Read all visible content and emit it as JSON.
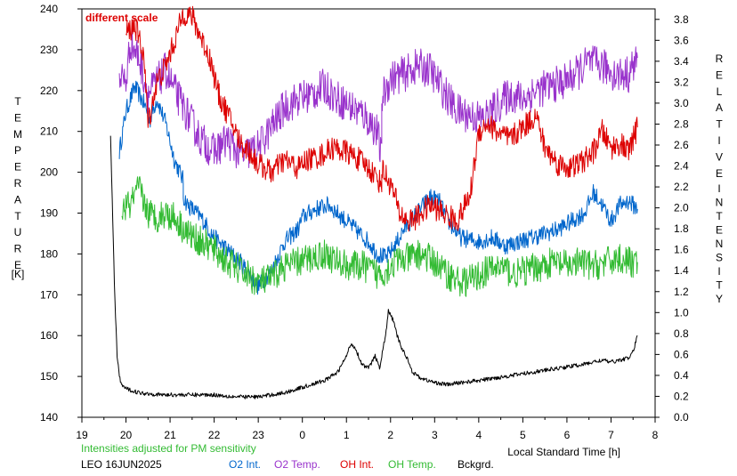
{
  "chart_data": {
    "type": "line",
    "annotation": "different scale",
    "left_axis": {
      "label_letters": [
        "T",
        "E",
        "M",
        "P",
        "E",
        "R",
        "A",
        "T",
        "U",
        "R",
        "E"
      ],
      "unit": "[K]",
      "range": [
        140,
        240
      ],
      "ticks": [
        140,
        150,
        160,
        170,
        180,
        190,
        200,
        210,
        220,
        230,
        240
      ]
    },
    "right_axis": {
      "label_word1": [
        "R",
        "E",
        "L",
        "A",
        "T",
        "I",
        "V",
        "E"
      ],
      "label_word2": [
        "I",
        "N",
        "T",
        "E",
        "N",
        "S",
        "I",
        "T",
        "Y"
      ],
      "range": [
        0.0,
        3.9
      ],
      "ticks": [
        "0.0",
        "0.2",
        "0.4",
        "0.6",
        "0.8",
        "1.0",
        "1.2",
        "1.4",
        "1.6",
        "1.8",
        "2.0",
        "2.2",
        "2.4",
        "2.6",
        "2.8",
        "3.0",
        "3.2",
        "3.4",
        "3.6",
        "3.8"
      ]
    },
    "x_axis": {
      "label": "Local Standard Time [h]",
      "ticks": [
        "19",
        "20",
        "21",
        "22",
        "23",
        "0",
        "1",
        "2",
        "3",
        "4",
        "5",
        "6",
        "7",
        "8"
      ]
    },
    "footer": {
      "note": "Intensities adjusted for PM sensitivity",
      "station": "LEO 16JUN2025"
    },
    "legend": [
      {
        "name": "O2 Int.",
        "color": "#0066cc"
      },
      {
        "name": "O2 Temp.",
        "color": "#9933cc"
      },
      {
        "name": "OH Int.",
        "color": "#dd0000"
      },
      {
        "name": "OH Temp.",
        "color": "#33bb33"
      },
      {
        "name": "Bckgrd.",
        "color": "#000000"
      }
    ],
    "series": [
      {
        "name": "O2 Int.",
        "color": "#0066cc",
        "noise": 2.2,
        "points": [
          [
            19.85,
            205
          ],
          [
            20.0,
            215
          ],
          [
            20.2,
            221
          ],
          [
            20.4,
            217
          ],
          [
            20.55,
            213
          ],
          [
            20.7,
            218
          ],
          [
            20.9,
            212
          ],
          [
            21.1,
            203
          ],
          [
            21.3,
            198
          ],
          [
            21.3,
            194
          ],
          [
            21.4,
            192
          ],
          [
            21.7,
            189
          ],
          [
            22.0,
            184
          ],
          [
            22.3,
            181
          ],
          [
            22.6,
            178
          ],
          [
            23.0,
            172
          ],
          [
            23.3,
            176
          ],
          [
            23.6,
            183
          ],
          [
            23.9,
            186
          ],
          [
            24.0,
            189
          ],
          [
            24.3,
            191
          ],
          [
            24.6,
            192
          ],
          [
            24.9,
            189
          ],
          [
            25.2,
            186
          ],
          [
            25.5,
            183
          ],
          [
            25.7,
            180
          ],
          [
            25.9,
            179
          ],
          [
            26.1,
            182
          ],
          [
            26.3,
            186
          ],
          [
            26.6,
            190
          ],
          [
            26.9,
            194
          ],
          [
            27.1,
            193
          ],
          [
            27.3,
            188
          ],
          [
            27.6,
            184
          ],
          [
            28.0,
            183
          ],
          [
            28.3,
            184
          ],
          [
            28.6,
            182
          ],
          [
            28.9,
            183
          ],
          [
            29.2,
            184
          ],
          [
            29.5,
            185
          ],
          [
            29.8,
            186
          ],
          [
            30.1,
            188
          ],
          [
            30.4,
            190
          ],
          [
            30.6,
            195
          ],
          [
            30.8,
            192
          ],
          [
            31.0,
            188
          ],
          [
            31.2,
            192
          ],
          [
            31.4,
            193
          ],
          [
            31.6,
            191
          ]
        ]
      },
      {
        "name": "O2 Temp.",
        "color": "#9933cc",
        "noise": 4.5,
        "points": [
          [
            19.85,
            224
          ],
          [
            20.0,
            222
          ],
          [
            20.1,
            232
          ],
          [
            20.3,
            228
          ],
          [
            20.5,
            219
          ],
          [
            20.7,
            222
          ],
          [
            20.9,
            225
          ],
          [
            21.1,
            220
          ],
          [
            21.4,
            214
          ],
          [
            21.7,
            208
          ],
          [
            22.0,
            205
          ],
          [
            22.3,
            208
          ],
          [
            22.6,
            204
          ],
          [
            22.8,
            205
          ],
          [
            23.0,
            206
          ],
          [
            23.3,
            211
          ],
          [
            23.6,
            216
          ],
          [
            23.9,
            218
          ],
          [
            24.2,
            219
          ],
          [
            24.5,
            221
          ],
          [
            24.8,
            218
          ],
          [
            25.1,
            216
          ],
          [
            25.4,
            214
          ],
          [
            25.7,
            210
          ],
          [
            25.8,
            203
          ],
          [
            25.8,
            218
          ],
          [
            26.0,
            223
          ],
          [
            26.3,
            224
          ],
          [
            26.6,
            226
          ],
          [
            26.9,
            225
          ],
          [
            27.2,
            220
          ],
          [
            27.5,
            215
          ],
          [
            27.8,
            214
          ],
          [
            28.1,
            213
          ],
          [
            28.4,
            216
          ],
          [
            28.7,
            219
          ],
          [
            29.0,
            218
          ],
          [
            29.3,
            220
          ],
          [
            29.6,
            221
          ],
          [
            29.9,
            222
          ],
          [
            30.2,
            224
          ],
          [
            30.5,
            227
          ],
          [
            30.8,
            226
          ],
          [
            31.1,
            224
          ],
          [
            31.4,
            224
          ],
          [
            31.6,
            228
          ]
        ]
      },
      {
        "name": "OH Int.",
        "color": "#dd0000",
        "noise": 3.0,
        "points": [
          [
            20.0,
            234
          ],
          [
            20.2,
            236
          ],
          [
            20.4,
            229
          ],
          [
            20.5,
            212
          ],
          [
            20.7,
            222
          ],
          [
            20.9,
            226
          ],
          [
            21.1,
            232
          ],
          [
            21.3,
            239
          ],
          [
            21.5,
            238
          ],
          [
            21.7,
            233
          ],
          [
            21.9,
            228
          ],
          [
            22.1,
            219
          ],
          [
            22.4,
            212
          ],
          [
            22.6,
            207
          ],
          [
            22.8,
            205
          ],
          [
            23.0,
            202
          ],
          [
            23.3,
            200
          ],
          [
            23.6,
            203
          ],
          [
            23.9,
            201
          ],
          [
            24.1,
            203
          ],
          [
            24.4,
            204
          ],
          [
            24.7,
            206
          ],
          [
            25.0,
            205
          ],
          [
            25.3,
            203
          ],
          [
            25.6,
            200
          ],
          [
            25.8,
            197
          ],
          [
            25.8,
            201
          ],
          [
            26.0,
            197
          ],
          [
            26.1,
            194
          ],
          [
            26.2,
            190
          ],
          [
            26.4,
            188
          ],
          [
            26.6,
            189
          ],
          [
            26.9,
            192
          ],
          [
            27.2,
            190
          ],
          [
            27.5,
            188
          ],
          [
            27.6,
            190
          ],
          [
            27.8,
            194
          ],
          [
            28.0,
            210
          ],
          [
            28.2,
            212
          ],
          [
            28.4,
            210
          ],
          [
            28.7,
            208
          ],
          [
            29.0,
            211
          ],
          [
            29.3,
            214
          ],
          [
            29.5,
            206
          ],
          [
            29.8,
            202
          ],
          [
            30.1,
            201
          ],
          [
            30.4,
            203
          ],
          [
            30.6,
            205
          ],
          [
            30.8,
            210
          ],
          [
            31.0,
            206
          ],
          [
            31.2,
            207
          ],
          [
            31.4,
            205
          ],
          [
            31.6,
            211
          ]
        ]
      },
      {
        "name": "OH Temp.",
        "color": "#33bb33",
        "noise": 3.8,
        "points": [
          [
            19.9,
            191
          ],
          [
            20.1,
            192
          ],
          [
            20.3,
            196
          ],
          [
            20.5,
            190
          ],
          [
            20.7,
            189
          ],
          [
            20.9,
            190
          ],
          [
            21.1,
            189
          ],
          [
            21.4,
            185
          ],
          [
            21.7,
            183
          ],
          [
            22.0,
            181
          ],
          [
            22.3,
            178
          ],
          [
            22.6,
            176
          ],
          [
            23.0,
            173
          ],
          [
            23.3,
            174
          ],
          [
            23.6,
            177
          ],
          [
            23.9,
            178
          ],
          [
            24.2,
            179
          ],
          [
            24.5,
            180
          ],
          [
            24.8,
            178
          ],
          [
            25.1,
            177
          ],
          [
            25.4,
            177
          ],
          [
            25.7,
            175
          ],
          [
            25.9,
            176
          ],
          [
            26.1,
            178
          ],
          [
            26.4,
            179
          ],
          [
            26.7,
            180
          ],
          [
            27.0,
            178
          ],
          [
            27.3,
            175
          ],
          [
            27.6,
            173
          ],
          [
            27.9,
            174
          ],
          [
            28.2,
            176
          ],
          [
            28.5,
            177
          ],
          [
            28.8,
            175
          ],
          [
            29.1,
            176
          ],
          [
            29.4,
            177
          ],
          [
            29.7,
            178
          ],
          [
            30.0,
            177
          ],
          [
            30.3,
            178
          ],
          [
            30.6,
            177
          ],
          [
            30.9,
            178
          ],
          [
            31.2,
            179
          ],
          [
            31.4,
            178
          ],
          [
            31.6,
            178
          ]
        ]
      },
      {
        "name": "Bckgrd.",
        "color": "#000000",
        "noise": 0.5,
        "points": [
          [
            19.65,
            209
          ],
          [
            19.7,
            188
          ],
          [
            19.75,
            168
          ],
          [
            19.8,
            155
          ],
          [
            19.85,
            150
          ],
          [
            19.9,
            148
          ],
          [
            20.0,
            147
          ],
          [
            20.3,
            146
          ],
          [
            20.8,
            145.5
          ],
          [
            21.5,
            145.5
          ],
          [
            22.0,
            145.5
          ],
          [
            22.5,
            145
          ],
          [
            23.0,
            145
          ],
          [
            23.3,
            145.5
          ],
          [
            23.6,
            146
          ],
          [
            23.9,
            147
          ],
          [
            24.2,
            148
          ],
          [
            24.5,
            149
          ],
          [
            24.8,
            151
          ],
          [
            25.0,
            155
          ],
          [
            25.1,
            158
          ],
          [
            25.2,
            157
          ],
          [
            25.35,
            153
          ],
          [
            25.5,
            152
          ],
          [
            25.6,
            154
          ],
          [
            25.65,
            155
          ],
          [
            25.75,
            152
          ],
          [
            25.8,
            155
          ],
          [
            25.9,
            161
          ],
          [
            25.95,
            166
          ],
          [
            26.05,
            164
          ],
          [
            26.15,
            160
          ],
          [
            26.25,
            157
          ],
          [
            26.4,
            154
          ],
          [
            26.5,
            151
          ],
          [
            26.7,
            149.5
          ],
          [
            27.0,
            148.5
          ],
          [
            27.3,
            148
          ],
          [
            27.6,
            148.5
          ],
          [
            28.0,
            149
          ],
          [
            28.3,
            149.5
          ],
          [
            28.6,
            150
          ],
          [
            28.9,
            150.5
          ],
          [
            29.2,
            151
          ],
          [
            29.5,
            151.5
          ],
          [
            29.8,
            152
          ],
          [
            30.1,
            152.5
          ],
          [
            30.4,
            153
          ],
          [
            30.6,
            153.5
          ],
          [
            30.8,
            154
          ],
          [
            31.0,
            153.5
          ],
          [
            31.2,
            154
          ],
          [
            31.4,
            154.5
          ],
          [
            31.5,
            156
          ],
          [
            31.6,
            160
          ]
        ]
      }
    ]
  }
}
